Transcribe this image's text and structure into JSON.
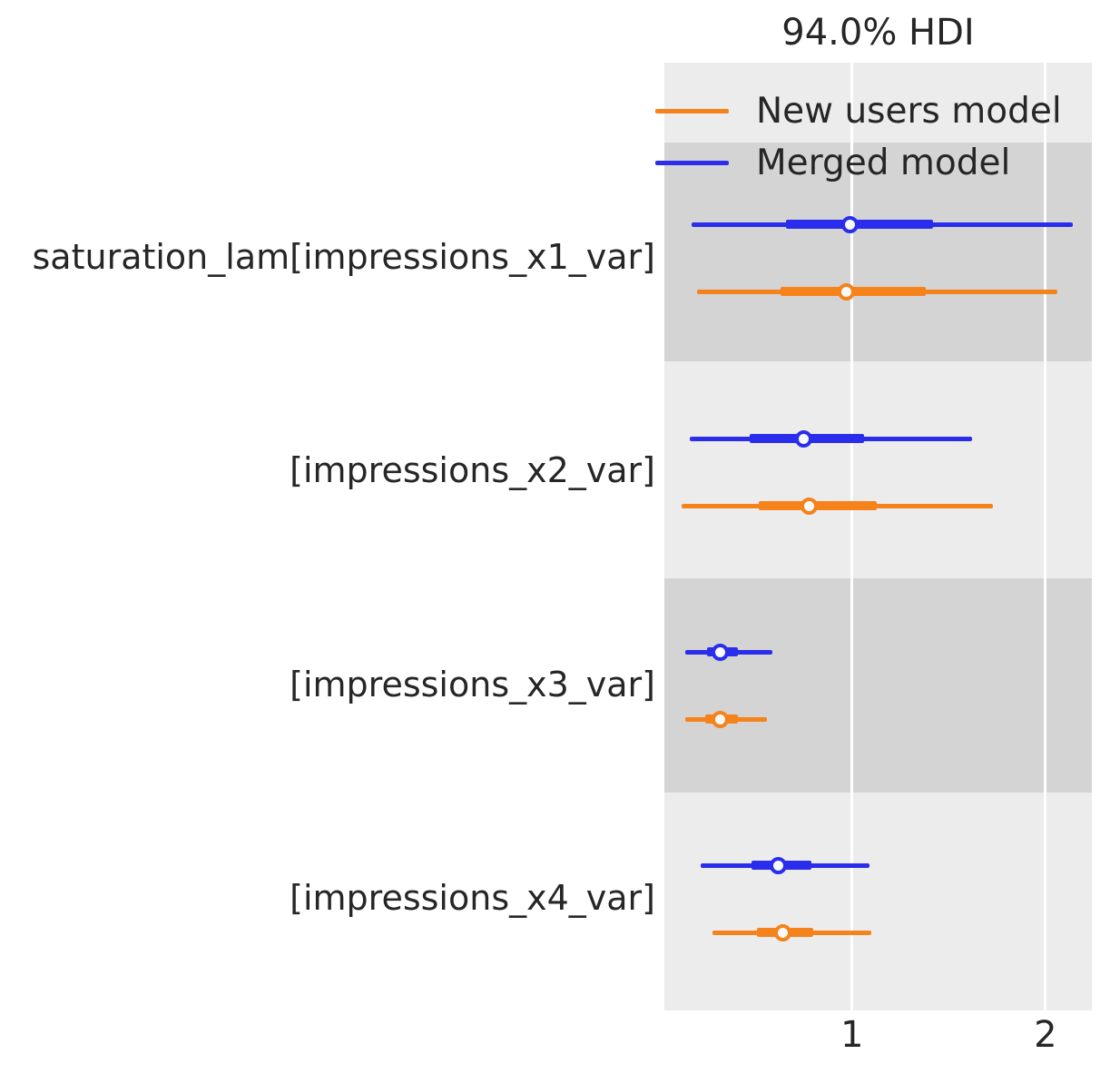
{
  "figure": {
    "title": "94.0% HDI"
  },
  "legend": {
    "items": [
      {
        "label": "New users model",
        "color": "#f6821b"
      },
      {
        "label": "Merged model",
        "color": "#2a2eec"
      }
    ]
  },
  "colors": {
    "band_light": "#ececec",
    "band_dark": "#d4d4d4",
    "gridline": "#ffffff",
    "text": "#262626",
    "marker_fill": "#fafafa"
  },
  "chart_data": {
    "type": "forest",
    "title": "94.0% HDI",
    "hdi_probability": "94.0%",
    "xlabel": "",
    "xticks": [
      1,
      2
    ],
    "xlim": [
      0.03,
      2.24
    ],
    "grid": "vertical white gridlines at xticks, alternating gray row bands",
    "legend_position": "upper left inside plot, no frame",
    "models": [
      {
        "name": "Merged model",
        "color": "#2a2eec"
      },
      {
        "name": "New users model",
        "color": "#f6821b"
      }
    ],
    "rows": [
      {
        "label": "saturation_lam[impressions_x1_var]",
        "series": [
          {
            "model": "Merged model",
            "hdi_low": 0.17,
            "quartile_low": 0.66,
            "median": 0.99,
            "quartile_high": 1.42,
            "hdi_high": 2.14
          },
          {
            "model": "New users model",
            "hdi_low": 0.2,
            "quartile_low": 0.63,
            "median": 0.97,
            "quartile_high": 1.38,
            "hdi_high": 2.06
          }
        ]
      },
      {
        "label": "[impressions_x2_var]",
        "series": [
          {
            "model": "Merged model",
            "hdi_low": 0.16,
            "quartile_low": 0.47,
            "median": 0.75,
            "quartile_high": 1.06,
            "hdi_high": 1.62
          },
          {
            "model": "New users model",
            "hdi_low": 0.12,
            "quartile_low": 0.52,
            "median": 0.78,
            "quartile_high": 1.13,
            "hdi_high": 1.73
          }
        ]
      },
      {
        "label": "[impressions_x3_var]",
        "series": [
          {
            "model": "Merged model",
            "hdi_low": 0.14,
            "quartile_low": 0.25,
            "median": 0.32,
            "quartile_high": 0.41,
            "hdi_high": 0.59
          },
          {
            "model": "New users model",
            "hdi_low": 0.14,
            "quartile_low": 0.24,
            "median": 0.32,
            "quartile_high": 0.41,
            "hdi_high": 0.56
          }
        ]
      },
      {
        "label": "[impressions_x4_var]",
        "series": [
          {
            "model": "Merged model",
            "hdi_low": 0.22,
            "quartile_low": 0.48,
            "median": 0.62,
            "quartile_high": 0.79,
            "hdi_high": 1.09
          },
          {
            "model": "New users model",
            "hdi_low": 0.28,
            "quartile_low": 0.51,
            "median": 0.64,
            "quartile_high": 0.8,
            "hdi_high": 1.1
          }
        ]
      }
    ]
  }
}
